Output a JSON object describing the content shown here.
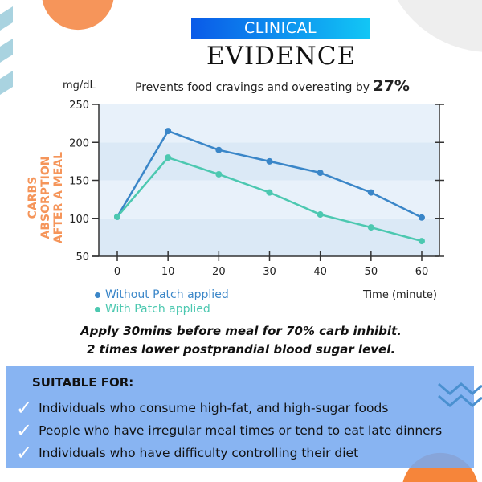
{
  "header": {
    "badge": "CLINICAL",
    "title": "EVIDENCE"
  },
  "subtitle": {
    "text": "Prevents food cravings and overeating by ",
    "highlight": "27%"
  },
  "chart_data": {
    "type": "line",
    "ylabel_unit": "mg/dL",
    "ylabel": "CARBS ABSORPTION AFTER A MEAL",
    "xlabel": "Time (minute)",
    "x": [
      0,
      10,
      20,
      30,
      40,
      50,
      60
    ],
    "xlim": [
      0,
      60
    ],
    "ylim": [
      50,
      250
    ],
    "yticks": [
      50,
      100,
      150,
      200,
      250
    ],
    "legend_position": "bottom-left",
    "series": [
      {
        "name": "Without Patch applied",
        "color": "#3a86c8",
        "values": [
          102,
          215,
          190,
          175,
          160,
          134,
          101
        ]
      },
      {
        "name": "With Patch applied",
        "color": "#4cc8b0",
        "values": [
          102,
          180,
          158,
          134,
          105,
          88,
          70
        ]
      }
    ]
  },
  "claims": [
    "Apply 30mins before meal for 70% carb inhibit.",
    "2 times lower postprandial blood sugar level."
  ],
  "suitable": {
    "heading": "SUITABLE FOR:",
    "items": [
      "Individuals who consume high-fat, and high-sugar foods",
      "People who have irregular meal times or tend to eat late dinners",
      "Individuals who have difficulty controlling their diet"
    ]
  },
  "colors": {
    "accent_orange": "#f5955a",
    "box_blue": "#78aaf0",
    "banner_start": "#0a5ae8",
    "banner_end": "#12c6f5"
  }
}
